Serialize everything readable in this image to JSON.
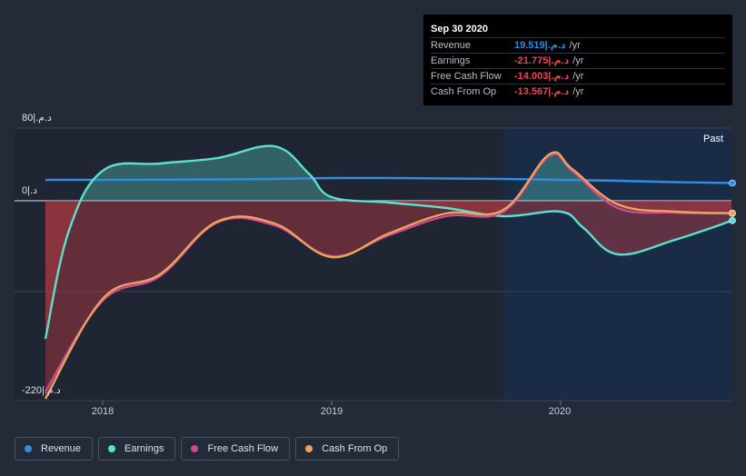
{
  "tooltip": {
    "title": "Sep 30 2020",
    "rows": [
      {
        "label": "Revenue",
        "value": "19.519|.د.م",
        "unit": "/yr",
        "color": "#2f8de4"
      },
      {
        "label": "Earnings",
        "value": "-21.775|.د.م",
        "unit": "/yr",
        "color": "#e8484f"
      },
      {
        "label": "Free Cash Flow",
        "value": "-14.003|.د.م",
        "unit": "/yr",
        "color": "#e8484f"
      },
      {
        "label": "Cash From Op",
        "value": "-13.567|.د.م",
        "unit": "/yr",
        "color": "#e8484f"
      }
    ]
  },
  "past_label": "Past",
  "legend": [
    {
      "label": "Revenue",
      "color": "#2f8de4"
    },
    {
      "label": "Earnings",
      "color": "#5ce0cf"
    },
    {
      "label": "Free Cash Flow",
      "color": "#cf4a8f"
    },
    {
      "label": "Cash From Op",
      "color": "#e9a55f"
    }
  ],
  "chart_data": {
    "type": "line",
    "ylim": [
      -220,
      80
    ],
    "y_tick_labels": [
      "80|.د.م",
      "0|.د",
      "-220|.د.م"
    ],
    "x_tick_labels": [
      "2018",
      "2019",
      "2020"
    ],
    "x_tick_values": [
      2018.0,
      2019.0,
      2020.0
    ],
    "xlim": [
      2017.65,
      2020.8
    ],
    "past_region_start": 2019.75,
    "grid": true,
    "legend_position": "bottom",
    "series": [
      {
        "name": "Revenue",
        "color": "#2f8de4",
        "x": [
          2017.75,
          2018.0,
          2018.5,
          2018.75,
          2019.0,
          2019.25,
          2019.5,
          2019.75,
          2020.0,
          2020.25,
          2020.5,
          2020.75
        ],
        "y": [
          23,
          23,
          23.5,
          24,
          25,
          25,
          24.5,
          24,
          23,
          22,
          20.5,
          19.5
        ]
      },
      {
        "name": "Earnings",
        "color": "#5ce0cf",
        "x": [
          2017.75,
          2017.85,
          2018.0,
          2018.25,
          2018.5,
          2018.75,
          2018.9,
          2019.0,
          2019.25,
          2019.5,
          2019.75,
          2020.0,
          2020.1,
          2020.25,
          2020.5,
          2020.75
        ],
        "y": [
          -152,
          -35,
          33,
          41,
          47,
          60,
          30,
          4,
          -2,
          -8,
          -17,
          -12,
          -30,
          -59,
          -43,
          -21.8
        ]
      },
      {
        "name": "Free Cash Flow",
        "color": "#cf4a8f",
        "x": [
          2017.75,
          2018.0,
          2018.25,
          2018.5,
          2018.75,
          2019.0,
          2019.25,
          2019.5,
          2019.75,
          2019.95,
          2020.05,
          2020.25,
          2020.5,
          2020.75
        ],
        "y": [
          -210,
          -110,
          -83,
          -24,
          -27,
          -61,
          -38,
          -17,
          -12,
          49,
          33,
          -8,
          -13,
          -14
        ]
      },
      {
        "name": "Cash From Op",
        "color": "#e9a55f",
        "x": [
          2017.75,
          2018.0,
          2018.25,
          2018.5,
          2018.75,
          2019.0,
          2019.25,
          2019.5,
          2019.75,
          2019.95,
          2020.05,
          2020.25,
          2020.5,
          2020.75
        ],
        "y": [
          -218,
          -108,
          -81,
          -23,
          -25,
          -62,
          -36,
          -14,
          -10,
          51,
          35,
          -4,
          -12,
          -13.6
        ]
      }
    ]
  }
}
